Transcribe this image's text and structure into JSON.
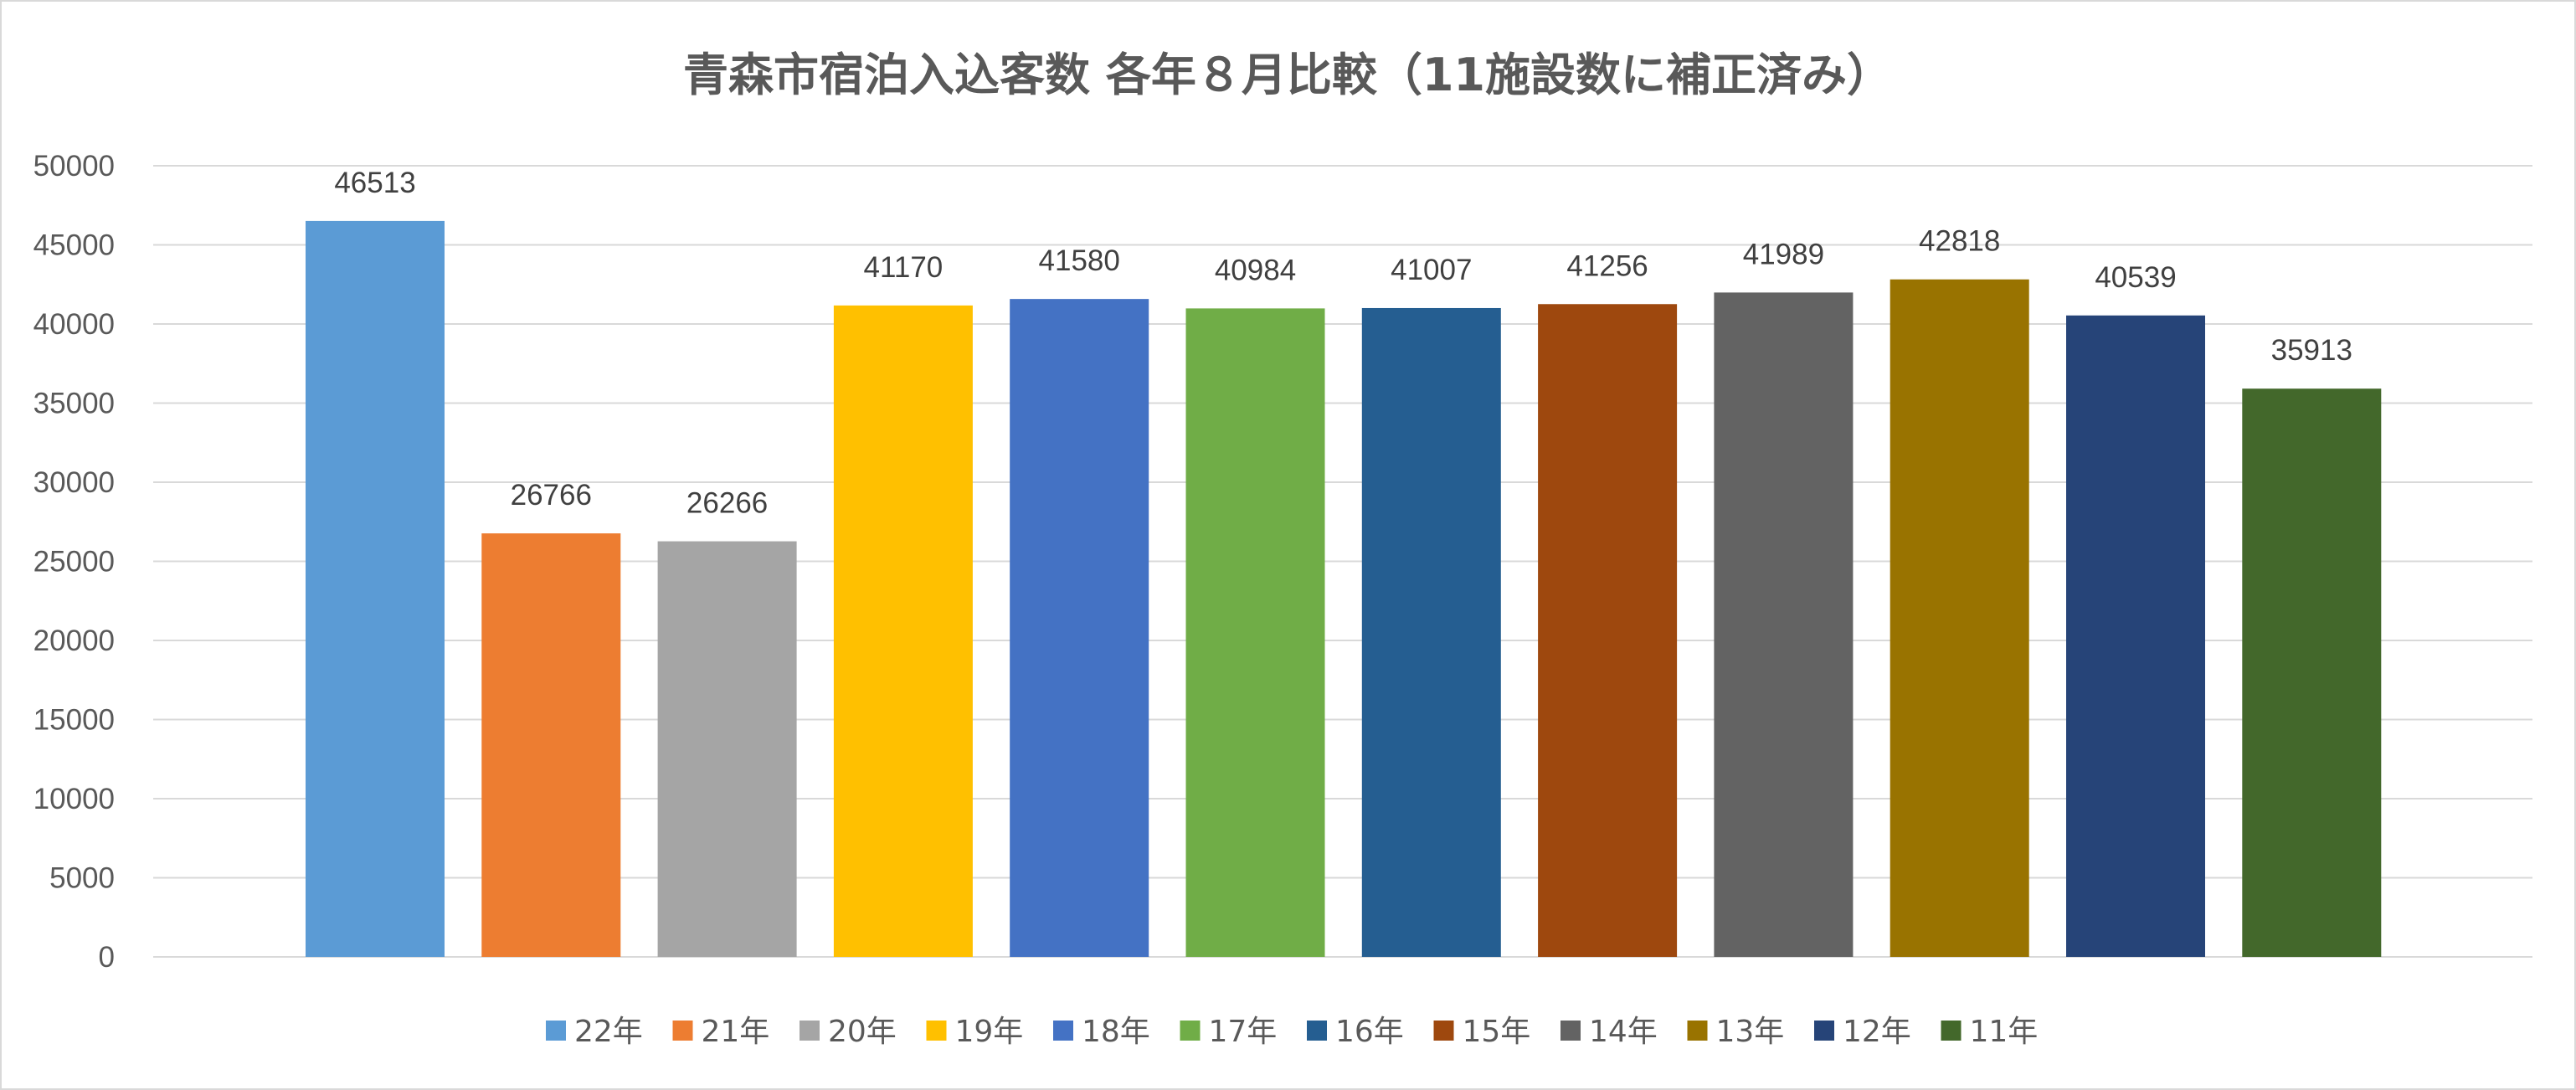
{
  "chart_data": {
    "type": "bar",
    "title": "青森市宿泊入込客数 各年８月比較（11施設数に補正済み）",
    "xlabel": "",
    "ylabel": "",
    "ylim": [
      0,
      50000
    ],
    "y_ticks": [
      "0",
      "5000",
      "10000",
      "15000",
      "20000",
      "25000",
      "30000",
      "35000",
      "40000",
      "45000",
      "50000"
    ],
    "grid": true,
    "legend_position": "bottom",
    "show_data_labels": true,
    "series": [
      {
        "name": "22年",
        "value": 46513,
        "color": "#5B9BD5"
      },
      {
        "name": "21年",
        "value": 26766,
        "color": "#ED7D31"
      },
      {
        "name": "20年",
        "value": 26266,
        "color": "#A5A5A5"
      },
      {
        "name": "19年",
        "value": 41170,
        "color": "#FFC000"
      },
      {
        "name": "18年",
        "value": 41580,
        "color": "#4472C4"
      },
      {
        "name": "17年",
        "value": 40984,
        "color": "#70AD47"
      },
      {
        "name": "16年",
        "value": 41007,
        "color": "#255E91"
      },
      {
        "name": "15年",
        "value": 41256,
        "color": "#9E480E"
      },
      {
        "name": "14年",
        "value": 41989,
        "color": "#636363"
      },
      {
        "name": "13年",
        "value": 42818,
        "color": "#997300"
      },
      {
        "name": "12年",
        "value": 40539,
        "color": "#264478"
      },
      {
        "name": "11年",
        "value": 35913,
        "color": "#43682B"
      }
    ]
  }
}
